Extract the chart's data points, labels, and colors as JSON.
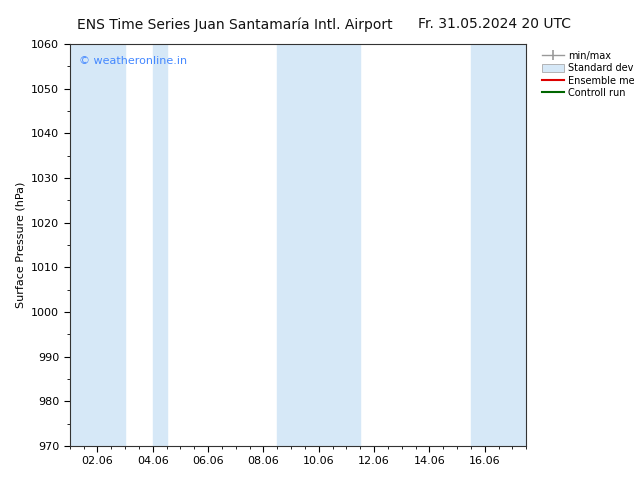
{
  "title_left": "ENS Time Series Juan Santamaría Intl. Airport",
  "title_right": "Fr. 31.05.2024 20 UTC",
  "ylabel": "Surface Pressure (hPa)",
  "ylim": [
    970,
    1060
  ],
  "yticks": [
    970,
    980,
    990,
    1000,
    1010,
    1020,
    1030,
    1040,
    1050,
    1060
  ],
  "xtick_labels": [
    "02.06",
    "04.06",
    "06.06",
    "08.06",
    "10.06",
    "12.06",
    "14.06",
    "16.06"
  ],
  "watermark": "© weatheronline.in",
  "watermark_color": "#4488ff",
  "bg_color": "#ffffff",
  "plot_bg_color": "#ffffff",
  "shaded_band_color": "#d6e8f7",
  "legend_entries": [
    "min/max",
    "Standard deviation",
    "Ensemble mean run",
    "Controll run"
  ],
  "title_fontsize": 10,
  "axis_fontsize": 8,
  "tick_fontsize": 8,
  "x_start": 0.0,
  "x_end": 16.5,
  "shaded_bands": [
    {
      "xmin": 0.0,
      "xmax": 2.0
    },
    {
      "xmin": 3.0,
      "xmax": 3.5
    },
    {
      "xmin": 7.5,
      "xmax": 10.5
    },
    {
      "xmin": 14.5,
      "xmax": 16.5
    }
  ],
  "xtick_positions": [
    1.0,
    3.0,
    5.0,
    7.0,
    9.0,
    11.0,
    13.0,
    15.0
  ]
}
